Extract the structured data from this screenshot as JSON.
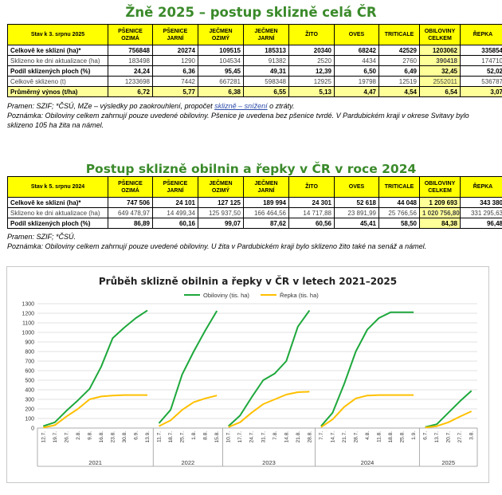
{
  "title1": "Žně 2025 – postup sklizně celá ČR",
  "table1": {
    "corner": "Stav k 3. srpnu 2025",
    "headers": [
      "PŠENICE OZIMÁ",
      "PŠENICE JARNÍ",
      "JEČMEN OZIMÝ",
      "JEČMEN JARNÍ",
      "ŽITO",
      "OVES",
      "TRITICALE",
      "OBILOVINY CELKEM",
      "ŘEPKA"
    ],
    "rows": [
      {
        "label": "Celkově ke sklizni (ha)*",
        "values": [
          "756848",
          "20274",
          "109515",
          "185313",
          "20340",
          "68242",
          "42529",
          "1203062",
          "335854"
        ],
        "bold": true
      },
      {
        "label": "Sklizeno ke dni aktualizace (ha)",
        "values": [
          "183498",
          "1290",
          "104534",
          "91382",
          "2520",
          "4434",
          "2760",
          "390418",
          "174710"
        ],
        "bold": false
      },
      {
        "label": "Podíl sklizených ploch (%)",
        "values": [
          "24,24",
          "6,36",
          "95,45",
          "49,31",
          "12,39",
          "6,50",
          "6,49",
          "32,45",
          "52,02"
        ],
        "bold": true
      },
      {
        "label": "Celkově sklizeno (t)",
        "values": [
          "1233698",
          "7442",
          "667281",
          "598348",
          "12925",
          "19798",
          "12519",
          "2552011",
          "536787"
        ],
        "bold": false
      },
      {
        "label": "Průměrný výnos (t/ha)",
        "values": [
          "6,72",
          "5,77",
          "6,38",
          "6,55",
          "5,13",
          "4,47",
          "4,54",
          "6,54",
          "3,07"
        ],
        "bold": true
      }
    ]
  },
  "notes1": {
    "line1_a": "Pramen: SZIF; *ČSÚ, MZe – výsledky po zaokrouhlení, propočet ",
    "line1_link": "sklizně – snížení",
    "line1_b": " o ztráty.",
    "line2": "Poznámka: Obiloviny celkem zahrnují pouze uvedené obiloviny. Pšenice je uvedena bez pšenice tvrdé. V Pardubickém kraji v okrese Svitavy bylo sklizeno 105 ha žita na námel."
  },
  "title2": "Postup sklizně obilnin a řepky v ČR v roce 2024",
  "table2": {
    "corner": "Stav k 5. srpnu 2024",
    "headers": [
      "PŠENICE OZIMÁ",
      "PŠENICE JARNÍ",
      "JEČMEN OZIMÝ",
      "JEČMEN JARNÍ",
      "ŽITO",
      "OVES",
      "TRITICALE",
      "OBILOVINY CELKEM",
      "ŘEPKA"
    ],
    "rows": [
      {
        "label": "Celkově ke sklizni (ha)*",
        "values": [
          "747 506",
          "24 101",
          "127 125",
          "189 994",
          "24 301",
          "52 618",
          "44 048",
          "1 209 693",
          "343 380"
        ],
        "bold": true
      },
      {
        "label": "Sklizeno ke dni aktualizace (ha)",
        "values": [
          "649 478,97",
          "14 499,34",
          "125 937,50",
          "166 464,56",
          "14 717,88",
          "23 891,99",
          "25 766,56",
          "1 020 756,80",
          "331 295,63"
        ],
        "bold": false
      },
      {
        "label": "Podíl sklizených ploch (%)",
        "values": [
          "86,89",
          "60,16",
          "99,07",
          "87,62",
          "60,56",
          "45,41",
          "58,50",
          "84,38",
          "96,48"
        ],
        "bold": true
      }
    ]
  },
  "notes2": {
    "line1": "Pramen: SZIF; *ČSÚ.",
    "line2": "Poznámka: Obiloviny celkem zahrnují pouze uvedené obiloviny. U žita v Pardubickém kraji bylo sklizeno žito také na senáž a námel."
  },
  "chart_data": {
    "type": "line",
    "title": "Průběh sklizně obilnin a řepky v ČR v letech 2021–2025",
    "ylim": [
      0,
      1300
    ],
    "yticks": [
      0,
      100,
      200,
      300,
      400,
      500,
      600,
      700,
      800,
      900,
      1000,
      1100,
      1200,
      1300
    ],
    "grid": true,
    "legend_position": "top-center",
    "series_colors": {
      "obiloviny": "#1ea83c",
      "repka": "#ffc000"
    },
    "series_names": [
      "Obiloviny (tis. ha)",
      "Řepka (tis. ha)"
    ],
    "years": [
      {
        "year": "2021",
        "dates": [
          "12.7.",
          "19.7.",
          "26.7.",
          "2.8.",
          "9.8.",
          "16.8.",
          "23.8.",
          "30.8.",
          "6.9.",
          "13.9."
        ],
        "obiloviny": [
          20,
          60,
          180,
          290,
          410,
          640,
          940,
          1050,
          1150,
          1230
        ],
        "repka": [
          5,
          30,
          120,
          200,
          300,
          330,
          340,
          345,
          345,
          345
        ]
      },
      {
        "year": "2022",
        "dates": [
          "11.7.",
          "18.7.",
          "25.7.",
          "1.8.",
          "8.8.",
          "15.8."
        ],
        "obiloviny": [
          50,
          190,
          560,
          800,
          1020,
          1225
        ],
        "repka": [
          20,
          80,
          190,
          270,
          310,
          340
        ]
      },
      {
        "year": "2023",
        "dates": [
          "10.7.",
          "17.7.",
          "24.7.",
          "31.7.",
          "7.8.",
          "14.8.",
          "21.8.",
          "28.8."
        ],
        "obiloviny": [
          20,
          130,
          320,
          500,
          570,
          700,
          1060,
          1230
        ],
        "repka": [
          10,
          60,
          160,
          250,
          300,
          350,
          375,
          380
        ]
      },
      {
        "year": "2024",
        "dates": [
          "7.7.",
          "14.7.",
          "21.7.",
          "28.7.",
          "4.8.",
          "11.8.",
          "18.8.",
          "25.8.",
          "1.9."
        ],
        "obiloviny": [
          20,
          160,
          460,
          800,
          1030,
          1150,
          1210,
          1210,
          1210
        ],
        "repka": [
          10,
          90,
          220,
          310,
          340,
          345,
          345,
          345,
          345
        ]
      },
      {
        "year": "2025",
        "dates": [
          "6.7.",
          "13.7.",
          "20.7.",
          "27.7.",
          "3.8."
        ],
        "obiloviny": [
          10,
          40,
          160,
          280,
          390
        ],
        "repka": [
          5,
          20,
          60,
          120,
          175
        ]
      }
    ]
  }
}
